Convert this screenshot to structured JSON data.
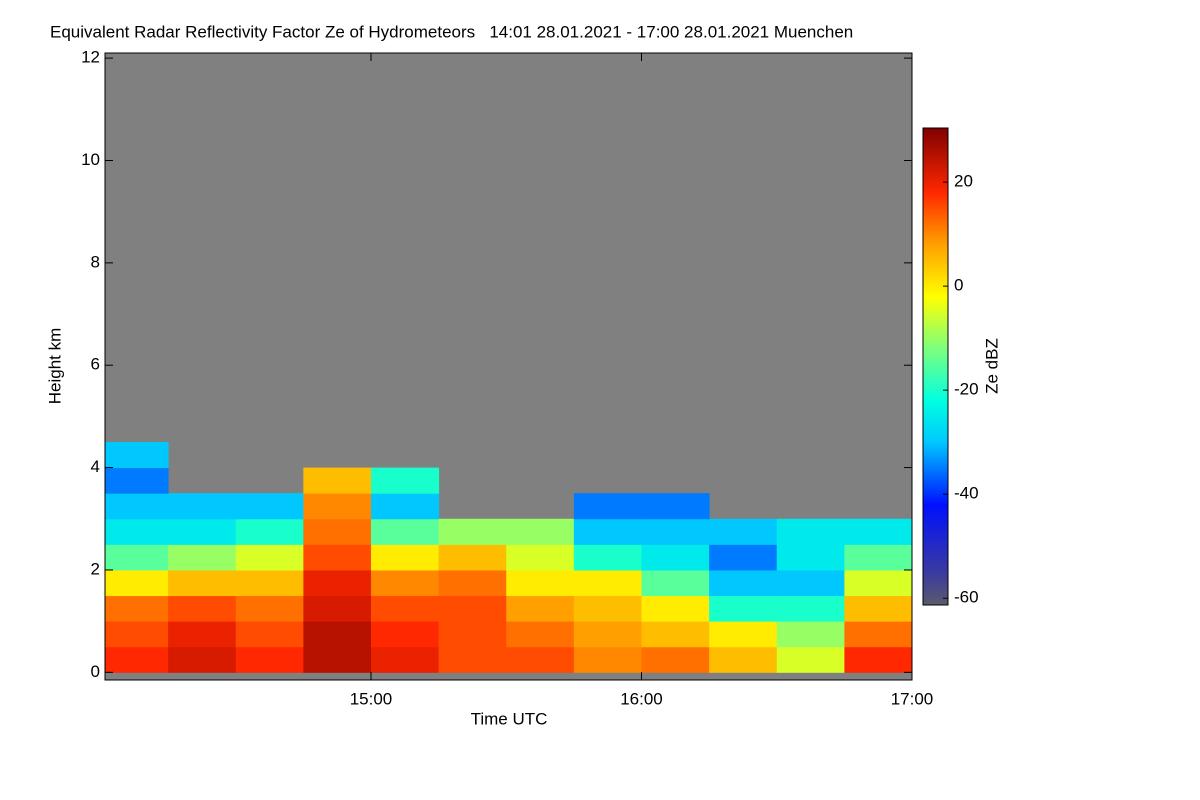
{
  "chart_data": {
    "type": "heatmap",
    "title": "Equivalent Radar Reflectivity Factor Ze of Hydrometeors   14:01 28.01.2021 - 17:00 28.01.2021 Muenchen",
    "x_label": "Time UTC",
    "y_label": "Height km",
    "colorbar_label": "Ze dBZ",
    "xlim": [
      14.0167,
      17.0
    ],
    "xticks": [
      {
        "value": 15,
        "label": "15:00"
      },
      {
        "value": 16,
        "label": "16:00"
      },
      {
        "value": 17,
        "label": "17:00"
      }
    ],
    "ylim": [
      -0.15,
      12.1
    ],
    "yticks": [
      0,
      2,
      4,
      6,
      8,
      10,
      12
    ],
    "clim": [
      -61.3,
      30.4
    ],
    "cticks": [
      -60,
      -40,
      -20,
      0,
      20
    ],
    "background_color": "#808080",
    "colormap": [
      {
        "value": -61.3,
        "color": "#5a5a6e"
      },
      {
        "value": -55,
        "color": "#3a3aa0"
      },
      {
        "value": -42,
        "color": "#0010ff"
      },
      {
        "value": -30,
        "color": "#00c8ff"
      },
      {
        "value": -22,
        "color": "#00ffe0"
      },
      {
        "value": -12,
        "color": "#7dff7d"
      },
      {
        "value": -2,
        "color": "#ffff00"
      },
      {
        "value": 8,
        "color": "#ffa000"
      },
      {
        "value": 18,
        "color": "#ff2800"
      },
      {
        "value": 30.4,
        "color": "#800000"
      }
    ],
    "xbins": [
      14.0,
      14.25,
      14.5,
      14.75,
      15.0,
      15.25,
      15.5,
      15.75,
      16.0,
      16.25,
      16.5,
      16.75,
      17.0
    ],
    "ybins": [
      0,
      0.5,
      1.0,
      1.5,
      2.0,
      2.5,
      3.0,
      3.5,
      4.0,
      4.5
    ],
    "z": [
      [
        18,
        22,
        18,
        25,
        20,
        15,
        15,
        10,
        12,
        5,
        -5,
        18
      ],
      [
        15,
        20,
        15,
        25,
        18,
        15,
        12,
        8,
        5,
        0,
        -10,
        12
      ],
      [
        12,
        15,
        12,
        22,
        15,
        15,
        8,
        5,
        0,
        -20,
        -20,
        5
      ],
      [
        0,
        5,
        5,
        20,
        10,
        12,
        0,
        0,
        -15,
        -30,
        -30,
        -5
      ],
      [
        -15,
        -10,
        -5,
        15,
        0,
        5,
        -5,
        -20,
        -25,
        -35,
        -25,
        -15
      ],
      [
        -25,
        -25,
        -20,
        12,
        -15,
        -10,
        -10,
        -30,
        -30,
        -30,
        -25,
        -25
      ],
      [
        -30,
        -30,
        -30,
        10,
        -30,
        null,
        null,
        -35,
        -35,
        null,
        null,
        null
      ],
      [
        -35,
        null,
        null,
        5,
        -20,
        null,
        null,
        null,
        null,
        null,
        null,
        null
      ],
      [
        -30,
        null,
        null,
        null,
        null,
        null,
        null,
        null,
        null,
        null,
        null,
        null
      ]
    ]
  }
}
